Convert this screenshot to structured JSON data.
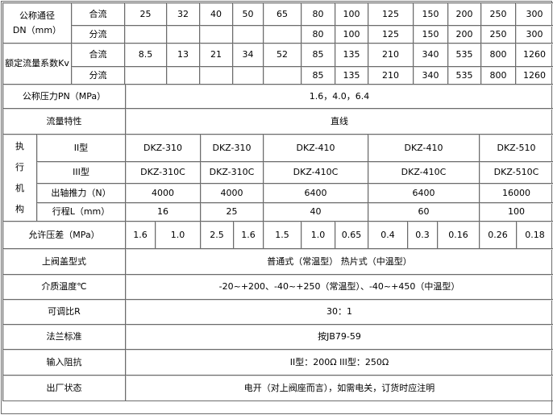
{
  "dn": {
    "label": "公称通径\nDN（mm）",
    "merge_label": "合流",
    "divert_label": "分流",
    "merge_values": [
      "25",
      "32",
      "40",
      "50",
      "65",
      "80",
      "100",
      "125",
      "150",
      "200",
      "250",
      "300"
    ],
    "divert_values": [
      "",
      "",
      "",
      "",
      "",
      "80",
      "100",
      "125",
      "150",
      "200",
      "250",
      "300"
    ]
  },
  "kv": {
    "label": "额定流量系数Kv",
    "merge_label": "合流",
    "divert_label": "分流",
    "merge_values": [
      "8.5",
      "13",
      "21",
      "34",
      "52",
      "85",
      "135",
      "210",
      "340",
      "535",
      "800",
      "1260"
    ],
    "divert_values": [
      "",
      "",
      "",
      "",
      "",
      "85",
      "135",
      "210",
      "340",
      "535",
      "800",
      "1260"
    ]
  },
  "pn": {
    "label": "公称压力PN（MPa）",
    "value": "1.6，4.0，6.4"
  },
  "flow": {
    "label": "流量特性",
    "value": "直线"
  },
  "actuator": {
    "label": "执\n行\n机\n构",
    "type2_label": "II型",
    "type2_values": [
      "DKZ-310",
      "DKZ-310",
      "DKZ-410",
      "DKZ-410",
      "DKZ-510"
    ],
    "type3_label": "III型",
    "type3_values": [
      "DKZ-310C",
      "DKZ-310C",
      "DKZ-410C",
      "DKZ-410C",
      "DKZ-510C"
    ],
    "thrust_label": "出轴推力（N）",
    "thrust_values": [
      "4000",
      "4000",
      "6400",
      "6400",
      "16000"
    ],
    "stroke_label": "行程L（mm）",
    "stroke_values": [
      "16",
      "25",
      "40",
      "60",
      "100"
    ]
  },
  "pressure_diff": {
    "label": "允许压差（MPa）",
    "values": [
      "1.6",
      "1.0",
      "2.5",
      "1.6",
      "1.5",
      "1.0",
      "0.65",
      "0.4",
      "0.3",
      "0.16",
      "0.26",
      "0.18"
    ]
  },
  "bonnet": {
    "label": "上阀盖型式",
    "value": "普通式（常温型）  热片式（中温型）"
  },
  "temperature": {
    "label": "介质温度℃",
    "value": "-20~+200、-40~+250（常温型）、-40~+450（中温型）"
  },
  "rangeability": {
    "label": "可调比R",
    "value": "30：1"
  },
  "flange": {
    "label": "法兰标准",
    "value": "按JB79-59"
  },
  "impedance": {
    "label": "输入阻抗",
    "value": "II型：200Ω  III型：250Ω"
  },
  "factory_state": {
    "label": "出厂状态",
    "value": "电开（对上阀座而言），如需电关，订货时应注明"
  }
}
